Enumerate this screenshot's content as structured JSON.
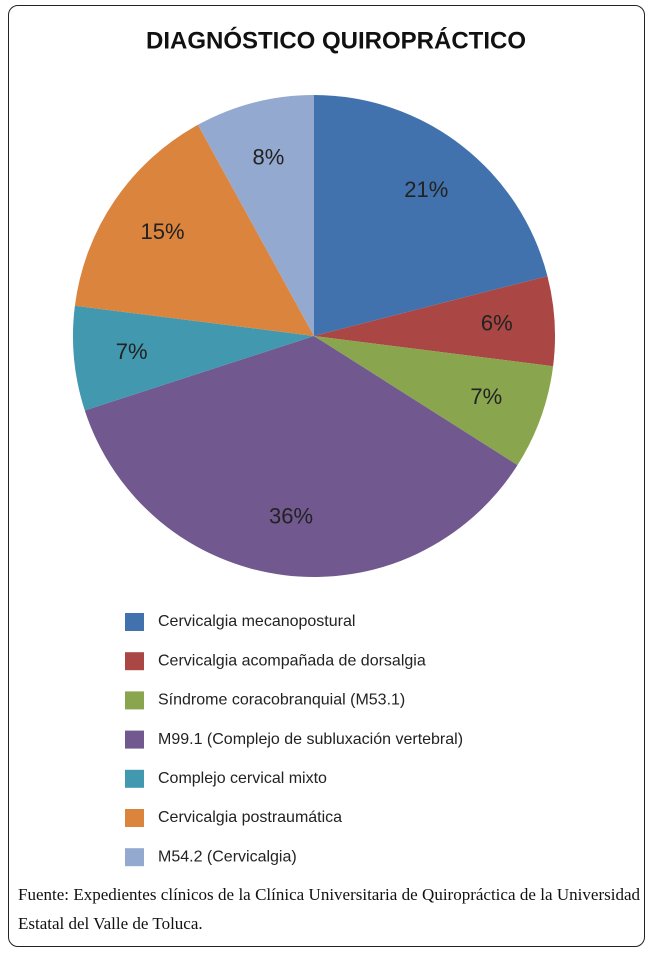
{
  "chart_data": {
    "type": "pie",
    "title": "DIAGNÓSTICO QUIROPRÁCTICO",
    "categories": [
      "Cervicalgia mecanopostural",
      "Cervicalgia acompañada  de dorsalgia",
      "Síndrome coracobranquial (M53.1)",
      "M99.1 (Complejo de subluxación vertebral)",
      "Complejo cervical mixto",
      "Cervicalgia postraumática",
      "M54.2 (Cervicalgia)"
    ],
    "values": [
      21,
      6,
      7,
      36,
      7,
      15,
      8
    ],
    "value_labels": [
      "21%",
      "6%",
      "7%",
      "36%",
      "7%",
      "15%",
      "8%"
    ],
    "colors": [
      "#4172ad",
      "#aa4643",
      "#89a54e",
      "#71588f",
      "#4198af",
      "#db843d",
      "#93a9cf"
    ],
    "source": "Fuente: Expedientes clínicos de la Clínica Universitaria de Quiropráctica de la Universidad Estatal del Valle de Toluca."
  }
}
